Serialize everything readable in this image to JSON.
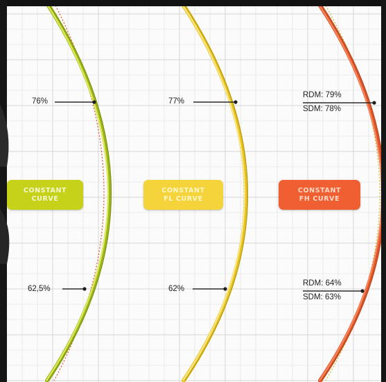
{
  "panels": [
    {
      "key": "cc",
      "tag_lines": [
        "CONSTANT",
        "CURVE"
      ],
      "tag_color": "#c6d21a",
      "tag_text_color": "#f4f7cf",
      "arc_color": "#9cb81c",
      "arc_highlight": "#e3ec5a",
      "dotted_color": "#e65a3a",
      "upper_label": "76%",
      "lower_label": "62,5%"
    },
    {
      "key": "fl",
      "tag_lines": [
        "CONSTANT",
        "FL CURVE"
      ],
      "tag_color": "#f4d43a",
      "tag_text_color": "#fff6c8",
      "arc_color": "#e9c21d",
      "arc_highlight": "#f8e88a",
      "dotted_color": "#c8a616",
      "upper_label": "77%",
      "lower_label": "62%"
    },
    {
      "key": "fh",
      "tag_lines": [
        "CONSTANT",
        "FH CURVE"
      ],
      "tag_color": "#ef5f31",
      "tag_text_color": "#ffd8c6",
      "arc_color": "#e3532a",
      "arc_highlight": "#f58a5e",
      "dotted_color": "#c9c23a",
      "upper_label_1": "RDM: 79%",
      "upper_label_2": "SDM: 78%",
      "lower_label_1": "RDM: 64%",
      "lower_label_2": "SDM: 63%"
    }
  ]
}
